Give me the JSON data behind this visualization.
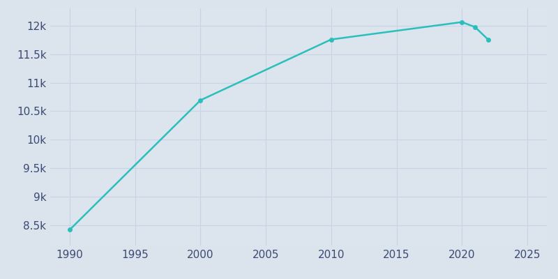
{
  "years": [
    1990,
    2000,
    2010,
    2020,
    2021,
    2022
  ],
  "population": [
    8428,
    10693,
    11756,
    12060,
    11974,
    11756
  ],
  "line_color": "#2ABFBB",
  "marker": "o",
  "marker_size": 4,
  "line_width": 1.8,
  "background_color": "#DBE3ED",
  "plot_background_color": "#DCE4EE",
  "grid_color": "#C8D4E3",
  "tick_color": "#3A4A72",
  "xlim": [
    1988.5,
    2026.5
  ],
  "ylim": [
    8150,
    12300
  ],
  "xticks": [
    1990,
    1995,
    2000,
    2005,
    2010,
    2015,
    2020,
    2025
  ],
  "ytick_values": [
    8500,
    9000,
    9500,
    10000,
    10500,
    11000,
    11500,
    12000
  ],
  "ytick_labels": [
    "8.5k",
    "9k",
    "9.5k",
    "10k",
    "10.5k",
    "11k",
    "11.5k",
    "12k"
  ],
  "tick_fontsize": 11
}
